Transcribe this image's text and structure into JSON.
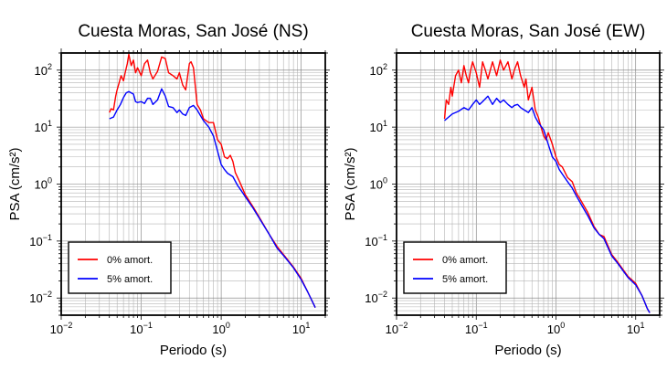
{
  "chart_data": [
    {
      "type": "line",
      "title": "Cuesta Moras, San José (NS)",
      "xlabel": "Periodo (s)",
      "ylabel": "PSA (cm/s²)",
      "xscale": "log",
      "yscale": "log",
      "xlim": [
        0.01,
        20
      ],
      "ylim": [
        0.005,
        200
      ],
      "xticks": [
        {
          "value": 0.01,
          "base": "10",
          "exp": "−2"
        },
        {
          "value": 0.1,
          "base": "10",
          "exp": "−1"
        },
        {
          "value": 1,
          "base": "10",
          "exp": "0"
        },
        {
          "value": 10,
          "base": "10",
          "exp": "1"
        }
      ],
      "yticks": [
        {
          "value": 0.01,
          "base": "10",
          "exp": "−2"
        },
        {
          "value": 0.1,
          "base": "10",
          "exp": "−1"
        },
        {
          "value": 1,
          "base": "10",
          "exp": "0"
        },
        {
          "value": 10,
          "base": "10",
          "exp": "1"
        },
        {
          "value": 100,
          "base": "10",
          "exp": "2"
        }
      ],
      "grid": true,
      "legend_position": "bottom-left",
      "series": [
        {
          "name": "0% amort.",
          "color": "#ff0000",
          "points": [
            [
              0.04,
              18
            ],
            [
              0.042,
              21
            ],
            [
              0.045,
              20
            ],
            [
              0.048,
              35
            ],
            [
              0.05,
              45
            ],
            [
              0.053,
              60
            ],
            [
              0.056,
              80
            ],
            [
              0.06,
              65
            ],
            [
              0.063,
              90
            ],
            [
              0.067,
              130
            ],
            [
              0.07,
              190
            ],
            [
              0.075,
              120
            ],
            [
              0.08,
              150
            ],
            [
              0.085,
              90
            ],
            [
              0.09,
              110
            ],
            [
              0.1,
              80
            ],
            [
              0.11,
              130
            ],
            [
              0.12,
              150
            ],
            [
              0.13,
              90
            ],
            [
              0.14,
              70
            ],
            [
              0.16,
              95
            ],
            [
              0.18,
              170
            ],
            [
              0.2,
              160
            ],
            [
              0.22,
              90
            ],
            [
              0.25,
              80
            ],
            [
              0.28,
              70
            ],
            [
              0.3,
              90
            ],
            [
              0.33,
              55
            ],
            [
              0.36,
              45
            ],
            [
              0.4,
              130
            ],
            [
              0.42,
              140
            ],
            [
              0.45,
              110
            ],
            [
              0.5,
              25
            ],
            [
              0.55,
              20
            ],
            [
              0.6,
              14
            ],
            [
              0.7,
              12
            ],
            [
              0.8,
              12
            ],
            [
              0.9,
              6
            ],
            [
              1.0,
              5
            ],
            [
              1.1,
              3
            ],
            [
              1.2,
              2.8
            ],
            [
              1.3,
              3.2
            ],
            [
              1.4,
              2.5
            ],
            [
              1.5,
              1.6
            ],
            [
              1.7,
              1.1
            ],
            [
              2.0,
              0.65
            ],
            [
              2.5,
              0.4
            ],
            [
              3,
              0.26
            ],
            [
              4,
              0.13
            ],
            [
              5,
              0.08
            ],
            [
              6,
              0.058
            ],
            [
              8,
              0.035
            ],
            [
              10,
              0.022
            ],
            [
              12,
              0.013
            ],
            [
              15,
              0.0068
            ]
          ]
        },
        {
          "name": "5% amort.",
          "color": "#0000ff",
          "points": [
            [
              0.04,
              14
            ],
            [
              0.045,
              15
            ],
            [
              0.05,
              20
            ],
            [
              0.055,
              25
            ],
            [
              0.06,
              33
            ],
            [
              0.065,
              40
            ],
            [
              0.07,
              42
            ],
            [
              0.08,
              38
            ],
            [
              0.085,
              28
            ],
            [
              0.09,
              27
            ],
            [
              0.1,
              28
            ],
            [
              0.11,
              26
            ],
            [
              0.12,
              32
            ],
            [
              0.13,
              32
            ],
            [
              0.14,
              25
            ],
            [
              0.16,
              30
            ],
            [
              0.18,
              47
            ],
            [
              0.2,
              35
            ],
            [
              0.22,
              23
            ],
            [
              0.25,
              22
            ],
            [
              0.28,
              18
            ],
            [
              0.3,
              20
            ],
            [
              0.33,
              17
            ],
            [
              0.36,
              16
            ],
            [
              0.4,
              22
            ],
            [
              0.45,
              24
            ],
            [
              0.5,
              20
            ],
            [
              0.6,
              13
            ],
            [
              0.7,
              10
            ],
            [
              0.8,
              7
            ],
            [
              0.9,
              3.8
            ],
            [
              1.0,
              2.2
            ],
            [
              1.1,
              1.8
            ],
            [
              1.2,
              1.55
            ],
            [
              1.4,
              1.35
            ],
            [
              1.6,
              0.95
            ],
            [
              1.8,
              0.75
            ],
            [
              2.0,
              0.6
            ],
            [
              2.5,
              0.38
            ],
            [
              3,
              0.25
            ],
            [
              4,
              0.13
            ],
            [
              5,
              0.075
            ],
            [
              6,
              0.056
            ],
            [
              8,
              0.034
            ],
            [
              10,
              0.021
            ],
            [
              12,
              0.013
            ],
            [
              15,
              0.0068
            ]
          ]
        }
      ]
    },
    {
      "type": "line",
      "title": "Cuesta Moras, San José (EW)",
      "xlabel": "Periodo (s)",
      "ylabel": "PSA (cm/s²)",
      "xscale": "log",
      "yscale": "log",
      "xlim": [
        0.01,
        20
      ],
      "ylim": [
        0.005,
        200
      ],
      "xticks": [
        {
          "value": 0.01,
          "base": "10",
          "exp": "−2"
        },
        {
          "value": 0.1,
          "base": "10",
          "exp": "−1"
        },
        {
          "value": 1,
          "base": "10",
          "exp": "0"
        },
        {
          "value": 10,
          "base": "10",
          "exp": "1"
        }
      ],
      "yticks": [
        {
          "value": 0.01,
          "base": "10",
          "exp": "−2"
        },
        {
          "value": 0.1,
          "base": "10",
          "exp": "−1"
        },
        {
          "value": 1,
          "base": "10",
          "exp": "0"
        },
        {
          "value": 10,
          "base": "10",
          "exp": "1"
        },
        {
          "value": 100,
          "base": "10",
          "exp": "2"
        }
      ],
      "grid": true,
      "legend_position": "bottom-left",
      "series": [
        {
          "name": "0% amort.",
          "color": "#ff0000",
          "points": [
            [
              0.04,
              14
            ],
            [
              0.042,
              30
            ],
            [
              0.045,
              25
            ],
            [
              0.048,
              50
            ],
            [
              0.05,
              35
            ],
            [
              0.055,
              80
            ],
            [
              0.06,
              100
            ],
            [
              0.065,
              60
            ],
            [
              0.07,
              120
            ],
            [
              0.075,
              80
            ],
            [
              0.08,
              60
            ],
            [
              0.085,
              100
            ],
            [
              0.09,
              140
            ],
            [
              0.1,
              90
            ],
            [
              0.11,
              50
            ],
            [
              0.12,
              140
            ],
            [
              0.13,
              100
            ],
            [
              0.14,
              70
            ],
            [
              0.16,
              140
            ],
            [
              0.18,
              80
            ],
            [
              0.2,
              150
            ],
            [
              0.22,
              100
            ],
            [
              0.25,
              140
            ],
            [
              0.28,
              70
            ],
            [
              0.3,
              100
            ],
            [
              0.33,
              140
            ],
            [
              0.36,
              80
            ],
            [
              0.4,
              50
            ],
            [
              0.42,
              70
            ],
            [
              0.45,
              30
            ],
            [
              0.5,
              50
            ],
            [
              0.55,
              20
            ],
            [
              0.6,
              15
            ],
            [
              0.65,
              10
            ],
            [
              0.7,
              7
            ],
            [
              0.75,
              6
            ],
            [
              0.8,
              8
            ],
            [
              0.9,
              5
            ],
            [
              1.0,
              3
            ],
            [
              1.1,
              2.2
            ],
            [
              1.2,
              2.0
            ],
            [
              1.4,
              1.3
            ],
            [
              1.6,
              1.1
            ],
            [
              1.8,
              0.7
            ],
            [
              2.0,
              0.55
            ],
            [
              2.5,
              0.32
            ],
            [
              3,
              0.18
            ],
            [
              3.5,
              0.13
            ],
            [
              4,
              0.12
            ],
            [
              5,
              0.058
            ],
            [
              6,
              0.042
            ],
            [
              8,
              0.024
            ],
            [
              10,
              0.018
            ],
            [
              12,
              0.011
            ],
            [
              14,
              0.0065
            ],
            [
              15,
              0.0055
            ]
          ]
        },
        {
          "name": "5% amort.",
          "color": "#0000ff",
          "points": [
            [
              0.04,
              13
            ],
            [
              0.045,
              15
            ],
            [
              0.05,
              17
            ],
            [
              0.06,
              19
            ],
            [
              0.07,
              22
            ],
            [
              0.08,
              20
            ],
            [
              0.09,
              25
            ],
            [
              0.1,
              30
            ],
            [
              0.11,
              25
            ],
            [
              0.12,
              28
            ],
            [
              0.14,
              35
            ],
            [
              0.16,
              25
            ],
            [
              0.18,
              32
            ],
            [
              0.2,
              27
            ],
            [
              0.22,
              30
            ],
            [
              0.25,
              25
            ],
            [
              0.28,
              22
            ],
            [
              0.3,
              24
            ],
            [
              0.33,
              25
            ],
            [
              0.36,
              22
            ],
            [
              0.4,
              20
            ],
            [
              0.45,
              18
            ],
            [
              0.5,
              22
            ],
            [
              0.55,
              15
            ],
            [
              0.6,
              12
            ],
            [
              0.7,
              9
            ],
            [
              0.8,
              5
            ],
            [
              0.9,
              3
            ],
            [
              1.0,
              2.5
            ],
            [
              1.1,
              1.8
            ],
            [
              1.2,
              1.5
            ],
            [
              1.4,
              1.1
            ],
            [
              1.6,
              0.85
            ],
            [
              1.8,
              0.62
            ],
            [
              2.0,
              0.48
            ],
            [
              2.5,
              0.28
            ],
            [
              3,
              0.17
            ],
            [
              3.5,
              0.13
            ],
            [
              4,
              0.11
            ],
            [
              5,
              0.055
            ],
            [
              6,
              0.04
            ],
            [
              8,
              0.023
            ],
            [
              10,
              0.017
            ],
            [
              12,
              0.011
            ],
            [
              14,
              0.0065
            ],
            [
              15,
              0.0055
            ]
          ]
        }
      ]
    }
  ]
}
